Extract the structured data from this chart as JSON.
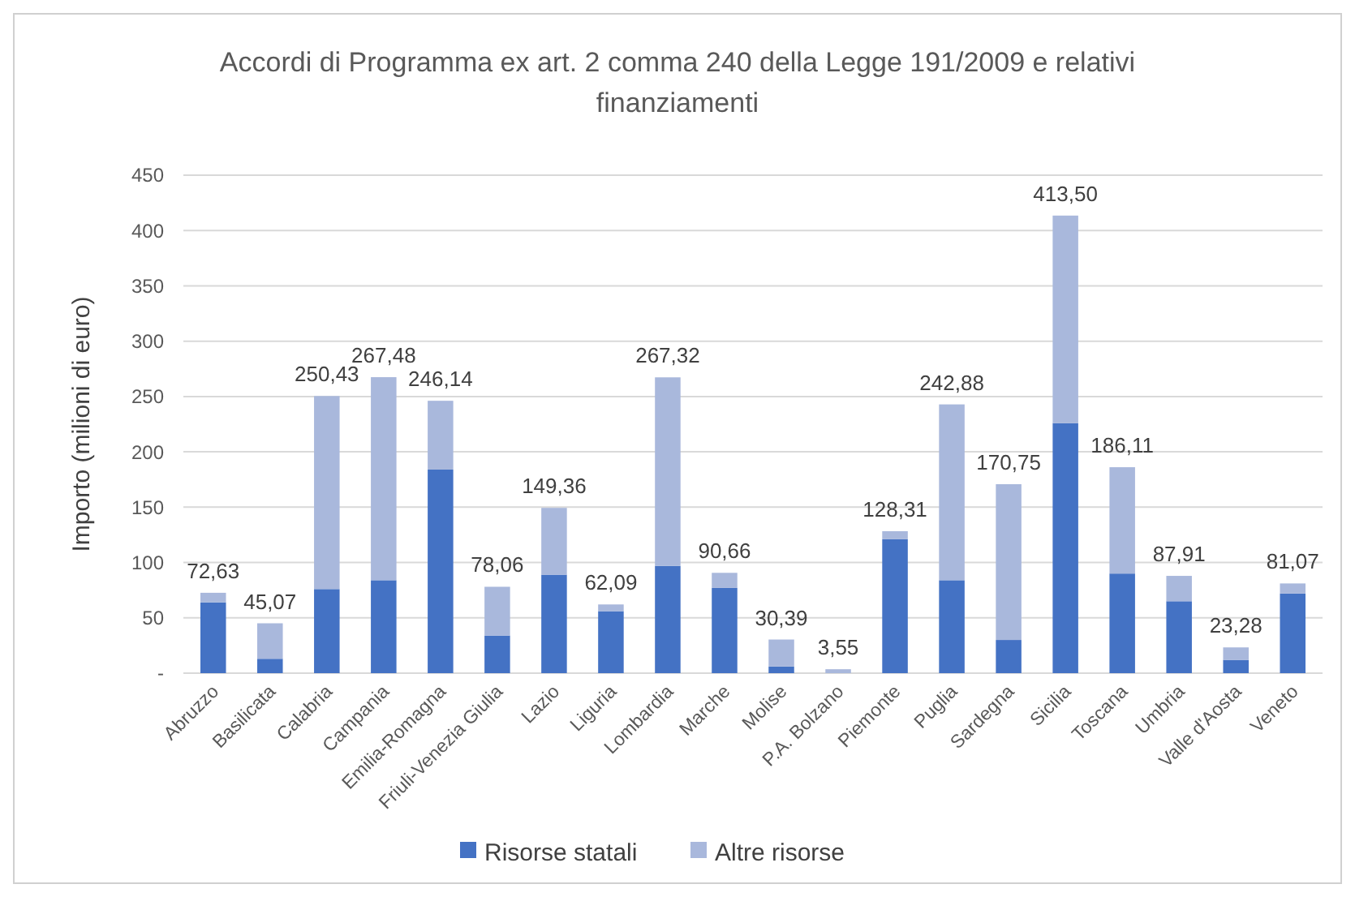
{
  "chart_data": {
    "type": "bar",
    "stacked": true,
    "title": "Accordi di Programma ex art. 2 comma 240 della Legge 191/2009 e relativi finanziamenti",
    "ylabel": "Importo (milioni di euro)",
    "categories": [
      "Abruzzo",
      "Basilicata",
      "Calabria",
      "Campania",
      "Emilia-Romagna",
      "Friuli-Venezia Giulia",
      "Lazio",
      "Liguria",
      "Lombardia",
      "Marche",
      "Molise",
      "P.A. Bolzano",
      "Piemonte",
      "Puglia",
      "Sardegna",
      "Sicilia",
      "Toscana",
      "Umbria",
      "Valle d'Aosta",
      "Veneto"
    ],
    "series": [
      {
        "name": "Risorse statali",
        "color": "#4472c4",
        "values": [
          64,
          13,
          76,
          84,
          184,
          34,
          89,
          56,
          97,
          77,
          6,
          null,
          121,
          84,
          30,
          226,
          90,
          65,
          12,
          72
        ]
      },
      {
        "name": "Altre risorse",
        "color": "#a9b8dc",
        "values": [
          8.63,
          32.07,
          174.43,
          183.48,
          62.14,
          44.06,
          60.36,
          6.09,
          170.32,
          13.66,
          24.39,
          3.55,
          7.31,
          158.88,
          140.75,
          187.5,
          96.11,
          22.91,
          11.28,
          9.07
        ]
      }
    ],
    "totals": [
      "72,63",
      "45,07",
      "250,43",
      "267,48",
      "246,14",
      "78,06",
      "149,36",
      "62,09",
      "267,32",
      "90,66",
      "30,39",
      "3,55",
      "128,31",
      "242,88",
      "170,75",
      "413,50",
      "186,11",
      "87,91",
      "23,28",
      "81,07"
    ],
    "ylim": [
      0,
      450
    ],
    "yticks": [
      {
        "value": 0,
        "label": "-"
      },
      50,
      100,
      150,
      200,
      250,
      300,
      350,
      400,
      450
    ],
    "grid": "y",
    "legend": "bottom"
  }
}
